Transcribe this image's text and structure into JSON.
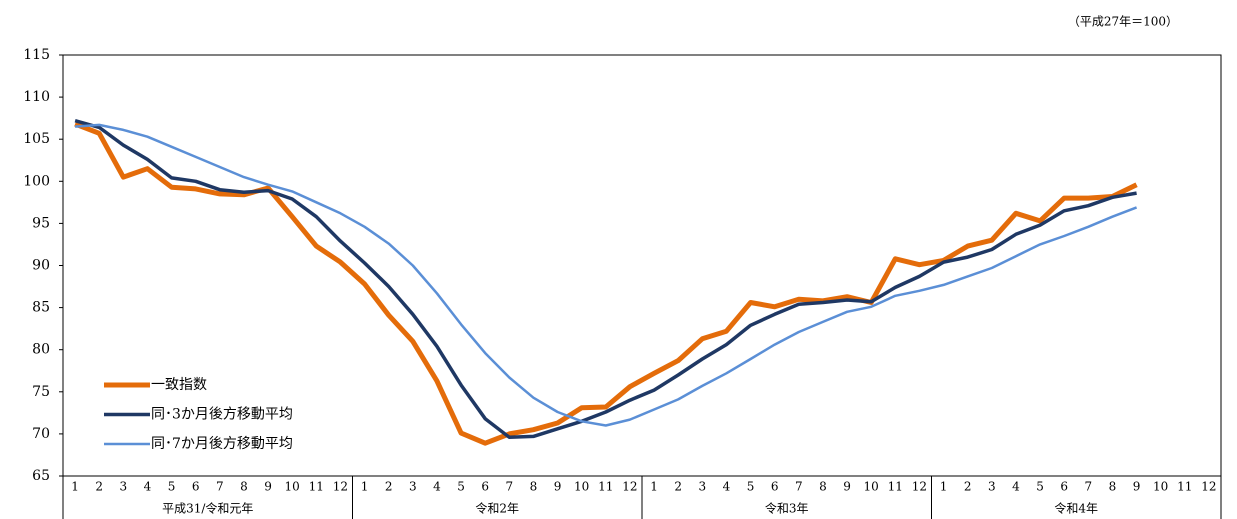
{
  "chart_data": {
    "type": "line",
    "unit_note": "（平成27年＝100）",
    "categories": [
      "1",
      "2",
      "3",
      "4",
      "5",
      "6",
      "7",
      "8",
      "9",
      "10",
      "11",
      "12",
      "1",
      "2",
      "3",
      "4",
      "5",
      "6",
      "7",
      "8",
      "9",
      "10",
      "11",
      "12",
      "1",
      "2",
      "3",
      "4",
      "5",
      "6",
      "7",
      "8",
      "9",
      "10",
      "11",
      "12",
      "1",
      "2",
      "3",
      "4",
      "5",
      "6",
      "7",
      "8",
      "9",
      "10",
      "11",
      "12"
    ],
    "groups": [
      "平成31/令和元年",
      "令和2年",
      "令和3年",
      "令和4年"
    ],
    "ylim": [
      65,
      115
    ],
    "yticks": [
      65,
      70,
      75,
      80,
      85,
      90,
      95,
      100,
      105,
      110,
      115
    ],
    "legend": "lower left",
    "series": [
      {
        "name": "一致指数",
        "color": "#e46c0a",
        "values": [
          106.8,
          105.7,
          100.5,
          101.5,
          99.3,
          99.1,
          98.5,
          98.4,
          99.2,
          95.8,
          92.3,
          90.4,
          87.8,
          84.1,
          81.0,
          76.3,
          70.1,
          68.9,
          70.0,
          70.5,
          71.3,
          73.1,
          73.2,
          75.6,
          77.2,
          78.7,
          81.3,
          82.2,
          85.6,
          85.1,
          86.0,
          85.8,
          86.3,
          85.6,
          90.8,
          90.1,
          90.6,
          92.3,
          93.0,
          96.2,
          95.3,
          98.0,
          98.0,
          98.2,
          99.6,
          null,
          null,
          null
        ]
      },
      {
        "name": "同･3か月後方移動平均",
        "color": "#1f3864",
        "values": [
          107.2,
          106.4,
          104.3,
          102.6,
          100.4,
          100.0,
          99.0,
          98.7,
          98.9,
          97.9,
          95.8,
          92.9,
          90.3,
          87.5,
          84.2,
          80.4,
          75.8,
          71.8,
          69.6,
          69.7,
          70.6,
          71.5,
          72.6,
          74.0,
          75.2,
          77.0,
          78.9,
          80.6,
          82.9,
          84.2,
          85.4,
          85.6,
          85.9,
          85.7,
          87.4,
          88.7,
          90.4,
          91.0,
          91.9,
          93.7,
          94.8,
          96.5,
          97.1,
          98.1,
          98.6,
          null,
          null,
          null
        ]
      },
      {
        "name": "同･7か月後方移動平均",
        "color": "#5b8fd6",
        "values": [
          106.5,
          106.7,
          106.1,
          105.3,
          104.1,
          102.9,
          101.7,
          100.5,
          99.6,
          98.8,
          97.5,
          96.2,
          94.6,
          92.6,
          90.0,
          86.7,
          83.0,
          79.6,
          76.7,
          74.3,
          72.6,
          71.5,
          71.0,
          71.7,
          72.9,
          74.1,
          75.7,
          77.2,
          78.9,
          80.6,
          82.1,
          83.3,
          84.5,
          85.1,
          86.4,
          87.0,
          87.7,
          88.7,
          89.7,
          91.1,
          92.5,
          93.5,
          94.6,
          95.8,
          96.9,
          null,
          null,
          null
        ]
      }
    ]
  }
}
